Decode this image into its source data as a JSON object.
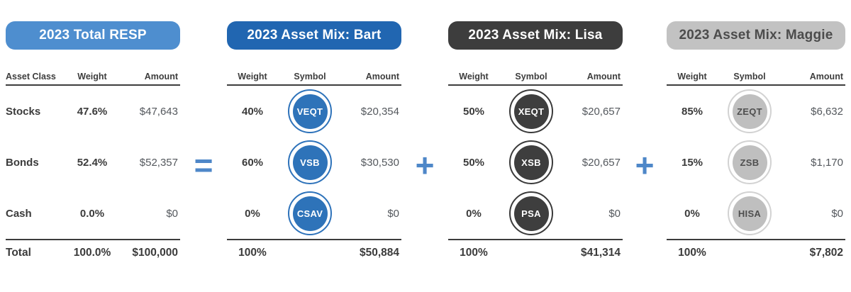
{
  "relationship": "2023 Total RESP = Asset Mix Bart + Asset Mix Lisa + Asset Mix Maggie",
  "operators": [
    {
      "symbol": "="
    },
    {
      "symbol": "+"
    },
    {
      "symbol": "+"
    }
  ],
  "colors": {
    "total_resp_header": "#4e8ecf",
    "bart_header": "#2166b1",
    "lisa_header": "#3d3d3d",
    "maggie_header": "#c2c2c2",
    "bart_symbol_circle": "#2e73b9",
    "lisa_symbol_circle": "#3e3e3e",
    "maggie_symbol_circle": "#bfbfbf",
    "operator_blue": "#4e87c8",
    "dark_text": "#3b3b3b",
    "amount_gray": "#54585d"
  },
  "panels": [
    {
      "title": "2023 Total RESP",
      "columns": [
        "Asset Class",
        "Weight",
        "Amount"
      ],
      "rows": [
        {
          "asset_class": "Stocks",
          "weight": "47.6%",
          "amount": "$47,643"
        },
        {
          "asset_class": "Bonds",
          "weight": "52.4%",
          "amount": "$52,357"
        },
        {
          "asset_class": "Cash",
          "weight": "0.0%",
          "amount": "$0"
        }
      ],
      "total": {
        "label": "Total",
        "weight": "100.0%",
        "amount": "$100,000"
      }
    },
    {
      "title": "2023 Asset Mix: Bart",
      "columns": [
        "Weight",
        "Symbol",
        "Amount"
      ],
      "rows": [
        {
          "weight": "40%",
          "symbol": "VEQT",
          "amount": "$20,354"
        },
        {
          "weight": "60%",
          "symbol": "VSB",
          "amount": "$30,530"
        },
        {
          "weight": "0%",
          "symbol": "CSAV",
          "amount": "$0"
        }
      ],
      "total": {
        "weight": "100%",
        "amount": "$50,884"
      }
    },
    {
      "title": "2023 Asset Mix: Lisa",
      "columns": [
        "Weight",
        "Symbol",
        "Amount"
      ],
      "rows": [
        {
          "weight": "50%",
          "symbol": "XEQT",
          "amount": "$20,657"
        },
        {
          "weight": "50%",
          "symbol": "XSB",
          "amount": "$20,657"
        },
        {
          "weight": "0%",
          "symbol": "PSA",
          "amount": "$0"
        }
      ],
      "total": {
        "weight": "100%",
        "amount": "$41,314"
      }
    },
    {
      "title": "2023 Asset Mix: Maggie",
      "columns": [
        "Weight",
        "Symbol",
        "Amount"
      ],
      "rows": [
        {
          "weight": "85%",
          "symbol": "ZEQT",
          "amount": "$6,632"
        },
        {
          "weight": "15%",
          "symbol": "ZSB",
          "amount": "$1,170"
        },
        {
          "weight": "0%",
          "symbol": "HISA",
          "amount": "$0"
        }
      ],
      "total": {
        "weight": "100%",
        "amount": "$7,802"
      }
    }
  ],
  "chart_data": [
    {
      "type": "table",
      "title": "2023 Total RESP",
      "columns": [
        "Asset Class",
        "Weight",
        "Amount"
      ],
      "rows": [
        [
          "Stocks",
          "47.6%",
          "$47,643"
        ],
        [
          "Bonds",
          "52.4%",
          "$52,357"
        ],
        [
          "Cash",
          "0.0%",
          "$0"
        ],
        [
          "Total",
          "100.0%",
          "$100,000"
        ]
      ]
    },
    {
      "type": "table",
      "title": "2023 Asset Mix: Bart",
      "columns": [
        "Weight",
        "Symbol",
        "Amount"
      ],
      "rows": [
        [
          "40%",
          "VEQT",
          "$20,354"
        ],
        [
          "60%",
          "VSB",
          "$30,530"
        ],
        [
          "0%",
          "CSAV",
          "$0"
        ],
        [
          "100%",
          "",
          "$50,884"
        ]
      ]
    },
    {
      "type": "table",
      "title": "2023 Asset Mix: Lisa",
      "columns": [
        "Weight",
        "Symbol",
        "Amount"
      ],
      "rows": [
        [
          "50%",
          "XEQT",
          "$20,657"
        ],
        [
          "50%",
          "XSB",
          "$20,657"
        ],
        [
          "0%",
          "PSA",
          "$0"
        ],
        [
          "100%",
          "",
          "$41,314"
        ]
      ]
    },
    {
      "type": "table",
      "title": "2023 Asset Mix: Maggie",
      "columns": [
        "Weight",
        "Symbol",
        "Amount"
      ],
      "rows": [
        [
          "85%",
          "ZEQT",
          "$6,632"
        ],
        [
          "15%",
          "ZSB",
          "$1,170"
        ],
        [
          "0%",
          "HISA",
          "$0"
        ],
        [
          "100%",
          "",
          "$7,802"
        ]
      ]
    }
  ]
}
